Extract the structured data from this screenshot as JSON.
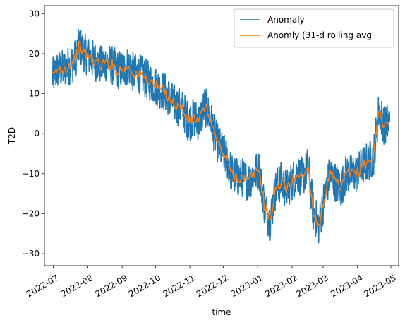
{
  "chart_data": {
    "type": "line",
    "title": "",
    "xlabel": "time",
    "ylabel": "T2D",
    "xlim": [
      "2022-06-23",
      "2023-05-08"
    ],
    "ylim": [
      -33,
      32
    ],
    "x_ticks": [
      "2022-07-01",
      "2022-08-01",
      "2022-09-01",
      "2022-10-01",
      "2022-11-01",
      "2022-12-01",
      "2023-01-01",
      "2023-02-01",
      "2023-03-01",
      "2023-04-01",
      "2023-05-01"
    ],
    "x_tick_labels": [
      "2022-07",
      "2022-08",
      "2022-09",
      "2022-10",
      "2022-11",
      "2022-12",
      "2023-01",
      "2023-02",
      "2023-03",
      "2023-04",
      "2023-05"
    ],
    "y_ticks": [
      -30,
      -20,
      -10,
      0,
      10,
      20,
      30
    ],
    "y_tick_labels": [
      "−30",
      "−20",
      "−10",
      "0",
      "10",
      "20",
      "30"
    ],
    "grid": false,
    "legend_position": "top-right",
    "x_start": "2022-06-30",
    "x_end": "2023-04-30",
    "series": [
      {
        "name": "Anomaly",
        "color": "#1f77b4",
        "noise_amplitude": 5,
        "values": [
          14,
          16,
          16,
          17,
          18,
          22,
          20,
          19,
          18,
          17,
          18,
          17,
          16,
          16,
          17,
          15,
          15,
          14,
          13,
          12,
          11,
          10,
          8,
          7,
          6,
          3,
          4,
          3,
          7,
          4,
          -1,
          -4,
          -6,
          -10,
          -11,
          -11,
          -12,
          -10,
          -9,
          -18,
          -22,
          -14,
          -12,
          -14,
          -12,
          -10,
          -11,
          -8,
          -20,
          -23,
          -16,
          -10,
          -12,
          -14,
          -10,
          -10,
          -10,
          -8,
          -7,
          -6,
          6,
          2,
          3
        ]
      },
      {
        "name": "Anomly (31-d rolling avg",
        "color": "#ff7f0e",
        "noise_amplitude": 1.5,
        "values": [
          14,
          16,
          16,
          17,
          18,
          22,
          20,
          19,
          18,
          17,
          18,
          17,
          16,
          16,
          17,
          15,
          15,
          14,
          13,
          12,
          11,
          10,
          8,
          7,
          6,
          3,
          4,
          3,
          7,
          4,
          -1,
          -4,
          -6,
          -10,
          -11,
          -11,
          -12,
          -10,
          -9,
          -18,
          -22,
          -14,
          -12,
          -14,
          -12,
          -10,
          -11,
          -8,
          -20,
          -23,
          -16,
          -10,
          -12,
          -14,
          -10,
          -10,
          -10,
          -8,
          -7,
          -6,
          6,
          2,
          3
        ]
      }
    ]
  }
}
